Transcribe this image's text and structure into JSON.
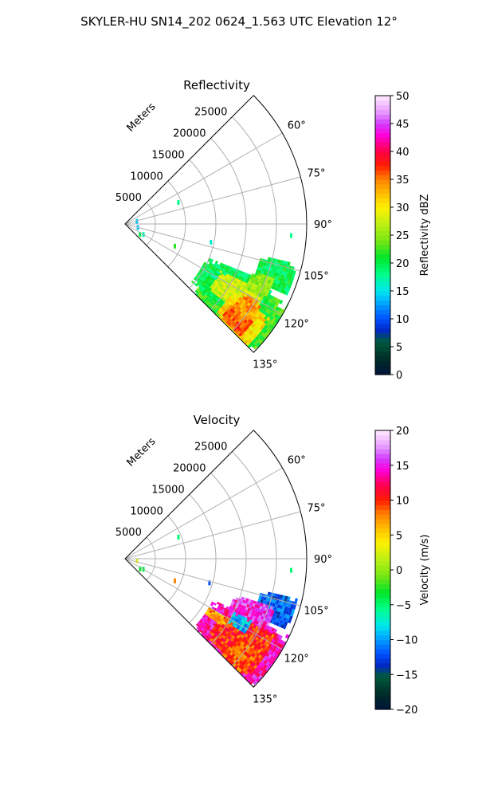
{
  "figure": {
    "title": "SKYLER-HU  SN14_202  0624_1.563 UTC Elevation 12°"
  },
  "chart_data": [
    {
      "type": "heatmap",
      "subtype": "polar-sector",
      "title": "Reflectivity",
      "radial_label": "Meters",
      "radial_ticks": [
        5000,
        10000,
        15000,
        20000,
        25000
      ],
      "radial_tick_labels": [
        "5000",
        "10000",
        "15000",
        "20000",
        "25000"
      ],
      "radial_max": 30000,
      "azimuth_range_deg": [
        45,
        135
      ],
      "azimuth_ticks": [
        60,
        75,
        90,
        105,
        120,
        135
      ],
      "azimuth_tick_labels": [
        "60°",
        "75°",
        "90°",
        "105°",
        "120°",
        "135°"
      ],
      "grid": true,
      "colorbar": {
        "label": "Reflectivity dBZ",
        "min": 0,
        "max": 50,
        "ticks": [
          0,
          5,
          10,
          15,
          20,
          25,
          30,
          35,
          40,
          45,
          50
        ],
        "tick_labels": [
          "0",
          "5",
          "10",
          "15",
          "20",
          "25",
          "30",
          "35",
          "40",
          "45",
          "50"
        ]
      },
      "echo_regions": [
        {
          "az": [
            116,
            136
          ],
          "r": [
            16000,
            30000
          ],
          "value": 22
        },
        {
          "az": [
            112,
            131
          ],
          "r": [
            14500,
            26500
          ],
          "value": 20
        },
        {
          "az": [
            103,
            113
          ],
          "r": [
            23000,
            29000
          ],
          "value": 20
        },
        {
          "az": [
            116,
            128
          ],
          "r": [
            17500,
            25500
          ],
          "value": 28
        },
        {
          "az": [
            123,
            135
          ],
          "r": [
            21000,
            28500
          ],
          "value": 31
        },
        {
          "az": [
            126,
            134
          ],
          "r": [
            22000,
            26500
          ],
          "value": 36
        },
        {
          "az": [
            120,
            128
          ],
          "r": [
            22500,
            26000
          ],
          "value": 34
        },
        {
          "az": [
            110,
            118
          ],
          "r": [
            22500,
            26000
          ],
          "value": 25
        },
        {
          "az": [
            117,
            121
          ],
          "r": [
            16000,
            17500
          ],
          "value": 19
        }
      ],
      "speckles": [
        {
          "az": 68,
          "r": 9500,
          "value": 18
        },
        {
          "az": 94,
          "r": 27500,
          "value": 18
        },
        {
          "az": 102,
          "r": 14500,
          "value": 16
        },
        {
          "az": 114,
          "r": 9000,
          "value": 22
        },
        {
          "az": 120,
          "r": 3500,
          "value": 17
        },
        {
          "az": 125,
          "r": 3000,
          "value": 20
        },
        {
          "az": 106,
          "r": 2200,
          "value": 14
        },
        {
          "az": 78,
          "r": 2000,
          "value": 14
        }
      ]
    },
    {
      "type": "heatmap",
      "subtype": "polar-sector",
      "title": "Velocity",
      "radial_label": "Meters",
      "radial_ticks": [
        5000,
        10000,
        15000,
        20000,
        25000
      ],
      "radial_tick_labels": [
        "5000",
        "10000",
        "15000",
        "20000",
        "25000"
      ],
      "radial_max": 30000,
      "azimuth_range_deg": [
        45,
        135
      ],
      "azimuth_ticks": [
        60,
        75,
        90,
        105,
        120,
        135
      ],
      "azimuth_tick_labels": [
        "60°",
        "75°",
        "90°",
        "105°",
        "120°",
        "135°"
      ],
      "grid": true,
      "colorbar": {
        "label": "Velocity (m/s)",
        "min": -20,
        "max": 20,
        "ticks": [
          -20,
          -15,
          -10,
          -5,
          0,
          5,
          10,
          15,
          20
        ],
        "tick_labels": [
          "−20",
          "−15",
          "−10",
          "−5",
          "0",
          "5",
          "10",
          "15",
          "20"
        ]
      },
      "echo_regions": [
        {
          "az": [
            115,
            136
          ],
          "r": [
            16000,
            30000
          ],
          "value": 14
        },
        {
          "az": [
            117,
            133
          ],
          "r": [
            18500,
            28000
          ],
          "value": 10
        },
        {
          "az": [
            124,
            134
          ],
          "r": [
            22500,
            27000
          ],
          "value": 9
        },
        {
          "az": [
            103,
            113
          ],
          "r": [
            23000,
            29000
          ],
          "value": -12
        },
        {
          "az": [
            108,
            116
          ],
          "r": [
            19000,
            26000
          ],
          "value": 15
        },
        {
          "az": [
            120,
            124
          ],
          "r": [
            16000,
            19500
          ],
          "value": 7
        },
        {
          "az": [
            116,
            121
          ],
          "r": [
            20000,
            23000
          ],
          "value": -9
        }
      ],
      "speckles": [
        {
          "az": 68,
          "r": 9500,
          "value": -5
        },
        {
          "az": 94,
          "r": 27500,
          "value": -5
        },
        {
          "az": 106,
          "r": 14500,
          "value": -12
        },
        {
          "az": 114,
          "r": 9000,
          "value": 8
        },
        {
          "az": 120,
          "r": 3500,
          "value": -4
        },
        {
          "az": 124,
          "r": 3000,
          "value": -3
        },
        {
          "az": 100,
          "r": 2000,
          "value": 3
        }
      ]
    }
  ]
}
